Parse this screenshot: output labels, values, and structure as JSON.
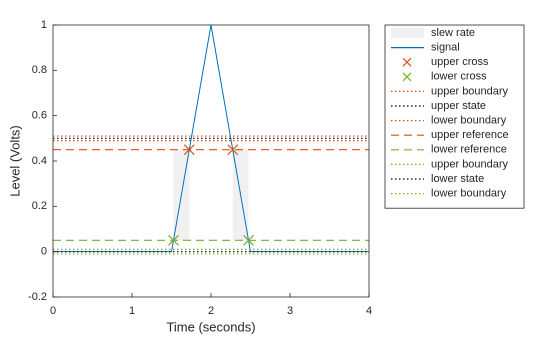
{
  "chart_data": {
    "type": "line",
    "xlabel": "Time (seconds)",
    "ylabel": "Level (Volts)",
    "xlim": [
      0,
      4
    ],
    "ylim": [
      -0.2,
      1
    ],
    "xticks": [
      0,
      1,
      2,
      3,
      4
    ],
    "yticks": [
      -0.2,
      0,
      0.2,
      0.4,
      0.6,
      0.8,
      1
    ],
    "series": [
      {
        "name": "slew rate",
        "style": "patch",
        "color": "#f0f0f0",
        "x": [
          [
            1.525,
            1.725
          ],
          [
            2.275,
            2.475
          ]
        ],
        "values": [
          0.05,
          0.45
        ]
      },
      {
        "name": "signal",
        "style": "solid",
        "color": "#0072bd",
        "x": [
          0,
          1.5,
          2,
          2.5,
          4
        ],
        "values": [
          0,
          0,
          1,
          0,
          0
        ]
      },
      {
        "name": "upper cross",
        "style": "x",
        "color": "#d95319",
        "x": [
          1.725,
          2.275
        ],
        "values": [
          0.45,
          0.45
        ]
      },
      {
        "name": "lower cross",
        "style": "x",
        "color": "#77ac30",
        "x": [
          1.525,
          2.475
        ],
        "values": [
          0.05,
          0.05
        ]
      },
      {
        "name": "upper boundary",
        "style": "dotted",
        "color": "#d95319",
        "x": [
          0,
          4
        ],
        "values": [
          0.51,
          0.51
        ]
      },
      {
        "name": "upper state",
        "style": "dotted",
        "color": "#000000",
        "x": [
          0,
          4
        ],
        "values": [
          0.5,
          0.5
        ]
      },
      {
        "name": "lower boundary",
        "style": "dotted",
        "color": "#d95319",
        "x": [
          0,
          4
        ],
        "values": [
          0.49,
          0.49
        ]
      },
      {
        "name": "upper reference",
        "style": "dashed",
        "color": "#d95319",
        "x": [
          0,
          4
        ],
        "values": [
          0.45,
          0.45
        ]
      },
      {
        "name": "lower reference",
        "style": "dashed",
        "color": "#77ac30",
        "x": [
          0,
          4
        ],
        "values": [
          0.05,
          0.05
        ]
      },
      {
        "name": "upper boundary",
        "style": "dotted",
        "color": "#77ac30",
        "x": [
          0,
          4
        ],
        "values": [
          0.01,
          0.01
        ]
      },
      {
        "name": "lower state",
        "style": "dotted",
        "color": "#000000",
        "x": [
          0,
          4
        ],
        "values": [
          0,
          0
        ]
      },
      {
        "name": "lower boundary",
        "style": "dotted",
        "color": "#77ac30",
        "x": [
          0,
          4
        ],
        "values": [
          -0.01,
          -0.01
        ]
      }
    ]
  }
}
